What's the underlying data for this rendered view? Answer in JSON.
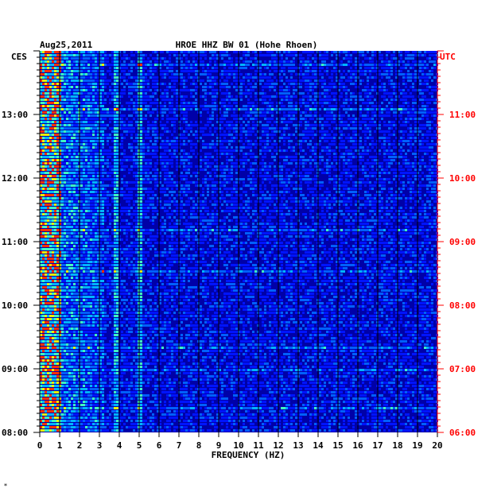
{
  "chart_data": {
    "type": "heatmap",
    "header_date": "Aug25,2011",
    "title": "HROE HHZ BW 01 (Hohe Rhoen)",
    "left_timezone": "CES",
    "right_timezone": "UTC",
    "xlabel": "FREQUENCY (HZ)",
    "xlim": [
      0,
      20
    ],
    "x_ticks": [
      "0",
      "1",
      "2",
      "3",
      "4",
      "5",
      "6",
      "7",
      "8",
      "9",
      "10",
      "11",
      "12",
      "13",
      "14",
      "15",
      "16",
      "17",
      "18",
      "19",
      "20"
    ],
    "y_ticks_left": [
      "13:00",
      "12:00",
      "11:00",
      "10:00",
      "09:00",
      "08:00"
    ],
    "y_ticks_right": [
      "11:00",
      "10:00",
      "09:00",
      "08:00",
      "07:00",
      "06:00"
    ],
    "time_range_local": [
      "08:00",
      "13:55"
    ],
    "colors": {
      "background": "#0000a8",
      "left_axis": "#000000",
      "right_axis": "#ff0000",
      "gridlines": "#000000"
    },
    "grid": true,
    "notable_features": [
      {
        "frequency_hz": 0.5,
        "description": "strong low-frequency energy (yellow/red) throughout"
      },
      {
        "frequency_hz": 3.8,
        "description": "persistent narrow line"
      },
      {
        "frequency_hz": 5.0,
        "description": "persistent narrow line"
      },
      {
        "frequency_hz": 12.0,
        "description": "intermittent narrow transients"
      },
      {
        "frequency_hz": 17.0,
        "description": "short transient near 11:40"
      }
    ]
  },
  "footer_mark": "*"
}
